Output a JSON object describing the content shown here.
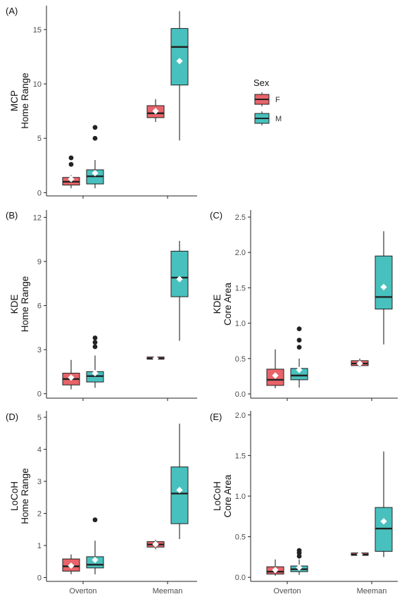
{
  "colors": {
    "F": "#E8646A",
    "M": "#48C1BE",
    "outline": "#222222",
    "mean_marker": "#ffffff",
    "axis": "#222222"
  },
  "legend": {
    "title": "Sex",
    "entries": [
      {
        "key": "F",
        "label": "F"
      },
      {
        "key": "M",
        "label": "M"
      }
    ]
  },
  "chart_data": [
    {
      "id": "A",
      "tag": "(A)",
      "type": "box",
      "ylabel_lines": [
        "MCP",
        "Home Range"
      ],
      "categories": [
        "Overton",
        "Meeman"
      ],
      "show_xlabels": false,
      "ylim": [
        -0.3,
        17.2
      ],
      "yticks": [
        0,
        5,
        10,
        15
      ],
      "groups": [
        {
          "category": "Overton",
          "sex": "F",
          "min": 0.4,
          "q1": 0.7,
          "median": 1.0,
          "q3": 1.4,
          "max": 1.6,
          "mean": 1.25,
          "outliers": [
            2.6,
            3.2
          ]
        },
        {
          "category": "Overton",
          "sex": "M",
          "min": 0.4,
          "q1": 0.8,
          "median": 1.5,
          "q3": 2.1,
          "max": 3.0,
          "mean": 1.8,
          "outliers": [
            5.0,
            6.0
          ]
        },
        {
          "category": "Meeman",
          "sex": "F",
          "min": 6.5,
          "q1": 6.9,
          "median": 7.3,
          "q3": 8.0,
          "max": 8.6,
          "mean": 7.5,
          "outliers": []
        },
        {
          "category": "Meeman",
          "sex": "M",
          "min": 4.8,
          "q1": 9.9,
          "median": 13.4,
          "q3": 15.1,
          "max": 16.7,
          "mean": 12.1,
          "outliers": []
        }
      ]
    },
    {
      "id": "B",
      "tag": "(B)",
      "type": "box",
      "ylabel_lines": [
        "KDE",
        "Home Range"
      ],
      "categories": [
        "Overton",
        "Meeman"
      ],
      "show_xlabels": false,
      "ylim": [
        -0.3,
        12.5
      ],
      "yticks": [
        0,
        3,
        6,
        9,
        12
      ],
      "groups": [
        {
          "category": "Overton",
          "sex": "F",
          "min": 0.3,
          "q1": 0.6,
          "median": 1.0,
          "q3": 1.4,
          "max": 2.3,
          "mean": 1.1,
          "outliers": []
        },
        {
          "category": "Overton",
          "sex": "M",
          "min": 0.4,
          "q1": 0.8,
          "median": 1.2,
          "q3": 1.5,
          "max": 2.6,
          "mean": 1.4,
          "outliers": [
            3.2,
            3.5,
            3.8
          ]
        },
        {
          "category": "Meeman",
          "sex": "F",
          "min": 2.3,
          "q1": 2.35,
          "median": 2.4,
          "q3": 2.5,
          "max": 2.5,
          "mean": 2.4,
          "outliers": []
        },
        {
          "category": "Meeman",
          "sex": "M",
          "min": 3.6,
          "q1": 6.6,
          "median": 7.9,
          "q3": 9.7,
          "max": 10.4,
          "mean": 7.8,
          "outliers": []
        }
      ]
    },
    {
      "id": "C",
      "tag": "(C)",
      "type": "box",
      "ylabel_lines": [
        "KDE",
        "Core Area"
      ],
      "categories": [
        "Overton",
        "Meeman"
      ],
      "show_xlabels": false,
      "ylim": [
        -0.06,
        2.6
      ],
      "yticks": [
        0.0,
        0.5,
        1.0,
        1.5,
        2.0,
        2.5
      ],
      "ytick_labels": [
        "0.0",
        "0.5",
        "1.0",
        "1.5",
        "2.0",
        "2.5"
      ],
      "groups": [
        {
          "category": "Overton",
          "sex": "F",
          "min": 0.08,
          "q1": 0.12,
          "median": 0.2,
          "q3": 0.35,
          "max": 0.63,
          "mean": 0.26,
          "outliers": []
        },
        {
          "category": "Overton",
          "sex": "M",
          "min": 0.09,
          "q1": 0.2,
          "median": 0.26,
          "q3": 0.36,
          "max": 0.5,
          "mean": 0.34,
          "outliers": [
            0.66,
            0.76,
            0.92
          ]
        },
        {
          "category": "Meeman",
          "sex": "F",
          "min": 0.38,
          "q1": 0.4,
          "median": 0.43,
          "q3": 0.47,
          "max": 0.5,
          "mean": 0.43,
          "outliers": []
        },
        {
          "category": "Meeman",
          "sex": "M",
          "min": 0.7,
          "q1": 1.2,
          "median": 1.37,
          "q3": 1.95,
          "max": 2.3,
          "mean": 1.51,
          "outliers": []
        }
      ]
    },
    {
      "id": "D",
      "tag": "(D)",
      "type": "box",
      "ylabel_lines": [
        "LoCoH",
        "Home Range"
      ],
      "categories": [
        "Overton",
        "Meeman"
      ],
      "show_xlabels": true,
      "ylim": [
        -0.12,
        5.2
      ],
      "yticks": [
        0,
        1,
        2,
        3,
        4,
        5
      ],
      "groups": [
        {
          "category": "Overton",
          "sex": "F",
          "min": 0.1,
          "q1": 0.2,
          "median": 0.35,
          "q3": 0.58,
          "max": 0.72,
          "mean": 0.37,
          "outliers": []
        },
        {
          "category": "Overton",
          "sex": "M",
          "min": 0.1,
          "q1": 0.3,
          "median": 0.4,
          "q3": 0.65,
          "max": 1.15,
          "mean": 0.55,
          "outliers": [
            1.8
          ]
        },
        {
          "category": "Meeman",
          "sex": "F",
          "min": 0.88,
          "q1": 0.95,
          "median": 1.03,
          "q3": 1.12,
          "max": 1.18,
          "mean": 1.04,
          "outliers": []
        },
        {
          "category": "Meeman",
          "sex": "M",
          "min": 1.2,
          "q1": 1.68,
          "median": 2.62,
          "q3": 3.45,
          "max": 4.8,
          "mean": 2.73,
          "outliers": []
        }
      ]
    },
    {
      "id": "E",
      "tag": "(E)",
      "type": "box",
      "ylabel_lines": [
        "LoCoH",
        "Core Area"
      ],
      "categories": [
        "Overton",
        "Meeman"
      ],
      "show_xlabels": true,
      "ylim": [
        -0.05,
        2.05
      ],
      "yticks": [
        0.0,
        0.5,
        1.0,
        1.5,
        2.0
      ],
      "ytick_labels": [
        "0.0",
        "0.5",
        "1.0",
        "1.5",
        "2.0"
      ],
      "groups": [
        {
          "category": "Overton",
          "sex": "F",
          "min": 0.02,
          "q1": 0.04,
          "median": 0.07,
          "q3": 0.13,
          "max": 0.22,
          "mean": 0.09,
          "outliers": []
        },
        {
          "category": "Overton",
          "sex": "M",
          "min": 0.03,
          "q1": 0.07,
          "median": 0.1,
          "q3": 0.14,
          "max": 0.22,
          "mean": 0.12,
          "outliers": [
            0.26,
            0.3,
            0.33
          ]
        },
        {
          "category": "Meeman",
          "sex": "F",
          "min": 0.26,
          "q1": 0.27,
          "median": 0.28,
          "q3": 0.3,
          "max": 0.31,
          "mean": 0.28,
          "outliers": []
        },
        {
          "category": "Meeman",
          "sex": "M",
          "min": 0.25,
          "q1": 0.32,
          "median": 0.6,
          "q3": 0.86,
          "max": 1.55,
          "mean": 0.69,
          "outliers": []
        }
      ]
    }
  ]
}
